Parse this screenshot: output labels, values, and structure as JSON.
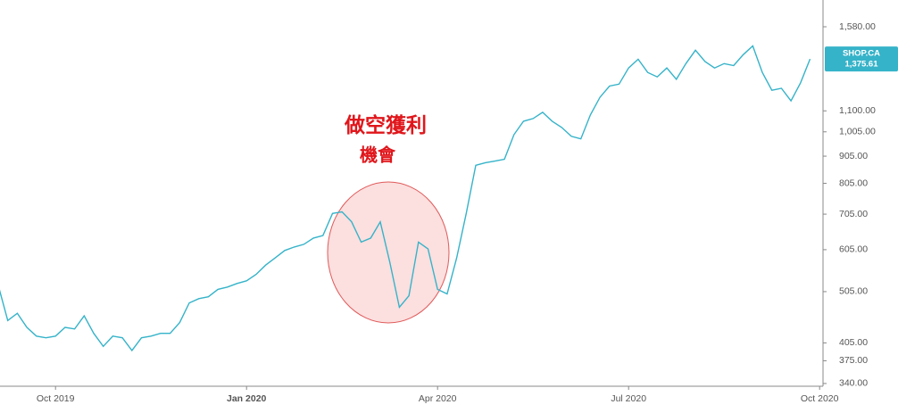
{
  "chart_data": {
    "type": "line",
    "yscale": "log",
    "annotations": [
      "做空獲利",
      "機會"
    ],
    "categories": [
      null,
      null,
      null,
      null,
      null,
      null,
      "Oct 2019",
      null,
      null,
      null,
      null,
      null,
      null,
      null,
      null,
      null,
      null,
      null,
      null,
      null,
      null,
      null,
      null,
      null,
      null,
      null,
      "Jan 2020",
      null,
      null,
      null,
      null,
      null,
      null,
      null,
      null,
      null,
      null,
      null,
      null,
      null,
      null,
      null,
      null,
      null,
      null,
      null,
      "Apr 2020",
      null,
      null,
      null,
      null,
      null,
      null,
      null,
      null,
      null,
      null,
      null,
      null,
      null,
      null,
      null,
      null,
      null,
      null,
      null,
      "Jul 2020",
      null,
      null,
      null,
      null,
      null,
      null,
      null,
      null,
      null,
      null,
      null,
      null,
      null,
      null,
      null,
      null,
      null,
      null,
      null,
      "Oct 2020"
    ],
    "series": [
      {
        "name": "SHOP.CA",
        "color": "#35b3c9",
        "values": [
          519,
          446,
          460,
          433,
          417,
          414,
          417,
          433,
          430,
          455,
          422,
          399,
          417,
          414,
          392,
          414,
          417,
          422,
          422,
          442,
          481,
          490,
          494,
          510,
          515,
          523,
          529,
          544,
          566,
          584,
          603,
          612,
          619,
          636,
          643,
          707,
          712,
          682,
          625,
          636,
          682,
          573,
          472,
          496,
          625,
          607,
          510,
          500,
          584,
          707,
          870,
          880,
          886,
          893,
          993,
          1052,
          1064,
          1093,
          1052,
          1024,
          986,
          975,
          1081,
          1166,
          1224,
          1234,
          1323,
          1374,
          1298,
          1273,
          1323,
          1260,
          1348,
          1428,
          1360,
          1323,
          1348,
          1337,
          1401,
          1455,
          1298,
          1202,
          1212,
          1148,
          1241,
          1375.61,
          null
        ],
        "value_labels": [
          null,
          null,
          null,
          null,
          null,
          null,
          null,
          null,
          null,
          null,
          null,
          null,
          null,
          null,
          null,
          null,
          null,
          null,
          null,
          null,
          null,
          null,
          null,
          null,
          null,
          null,
          null,
          null,
          null,
          null,
          null,
          null,
          null,
          null,
          null,
          null,
          null,
          null,
          null,
          null,
          null,
          null,
          null,
          null,
          null,
          null,
          null,
          null,
          null,
          null,
          null,
          null,
          null,
          null,
          null,
          null,
          null,
          null,
          null,
          null,
          null,
          null,
          null,
          null,
          null,
          null,
          null,
          null,
          null,
          null,
          null,
          null,
          null,
          null,
          null,
          null,
          null,
          null,
          null,
          null,
          null,
          null,
          null,
          null,
          null,
          "1,375.61",
          null
        ]
      }
    ],
    "ylim": [
      336,
      1773
    ],
    "yticks": [
      {
        "value": 340,
        "label": "340.00"
      },
      {
        "value": 375,
        "label": "375.00"
      },
      {
        "value": 405,
        "label": "405.00"
      },
      {
        "value": 505,
        "label": "505.00"
      },
      {
        "value": 605,
        "label": "605.00"
      },
      {
        "value": 705,
        "label": "705.00"
      },
      {
        "value": 805,
        "label": "805.00"
      },
      {
        "value": 905,
        "label": "905.00"
      },
      {
        "value": 1005,
        "label": "1,005.00"
      },
      {
        "value": 1100,
        "label": "1,100.00"
      },
      {
        "value": 1580,
        "label": "1,580.00"
      }
    ]
  }
}
